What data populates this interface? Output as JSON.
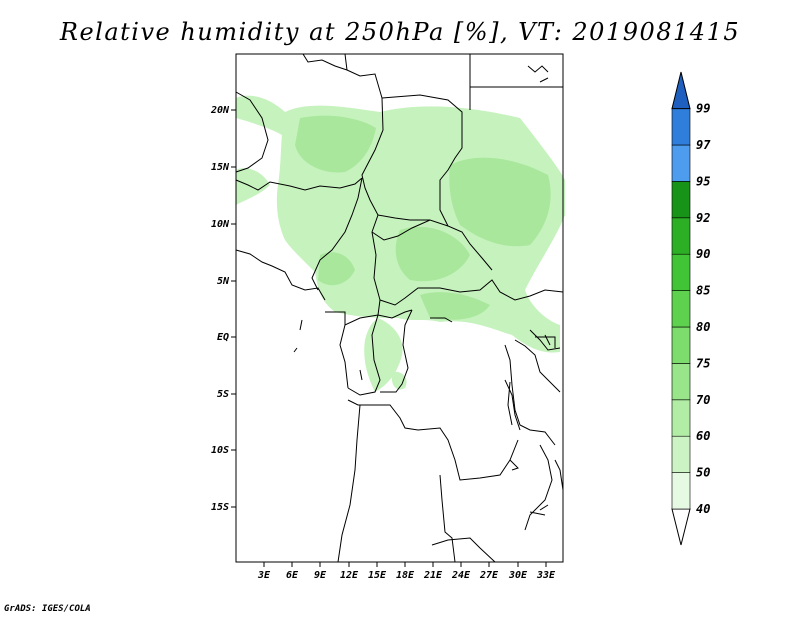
{
  "title": "Relative humidity at 250hPa [%], VT: 2019081415",
  "credit": "GrADS: IGES/COLA",
  "map": {
    "lat_labels": [
      "20N",
      "15N",
      "10N",
      "5N",
      "EQ",
      "5S",
      "10S",
      "15S"
    ],
    "lon_labels": [
      "3E",
      "6E",
      "9E",
      "12E",
      "15E",
      "18E",
      "21E",
      "24E",
      "27E",
      "30E",
      "33E"
    ]
  },
  "colorbar": {
    "levels": [
      "40",
      "50",
      "60",
      "70",
      "75",
      "80",
      "85",
      "90",
      "92",
      "95",
      "97",
      "99"
    ],
    "colors": [
      "#ffffff",
      "#e6f9e3",
      "#cbf3c4",
      "#b2eda6",
      "#99e68a",
      "#7ddd6c",
      "#5ed24e",
      "#41c435",
      "#2cae25",
      "#179417",
      "#4d9cee",
      "#2f7edc",
      "#1e5fc0"
    ]
  }
}
